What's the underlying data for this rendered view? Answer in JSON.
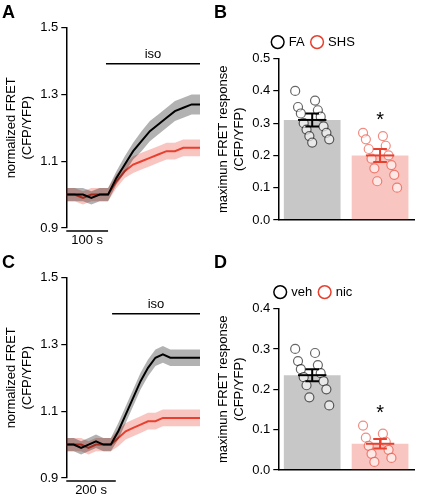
{
  "chart_data": [
    {
      "type": "line",
      "title": "A",
      "y_label": [
        "normalized FRET",
        "(CFP/YFP)"
      ],
      "x": [
        0,
        20,
        40,
        60,
        80,
        100,
        120,
        140,
        160,
        180,
        200,
        220,
        240,
        260,
        280,
        300,
        320
      ],
      "series": [
        {
          "color": "#000000",
          "values": [
            1.0,
            1.0,
            1.0,
            0.99,
            1.0,
            1.0,
            1.05,
            1.09,
            1.13,
            1.16,
            1.19,
            1.21,
            1.23,
            1.25,
            1.26,
            1.27,
            1.27
          ],
          "error": [
            0.02,
            0.02,
            0.02,
            0.02,
            0.02,
            0.02,
            0.02,
            0.025,
            0.025,
            0.03,
            0.03,
            0.03,
            0.03,
            0.03,
            0.03,
            0.03,
            0.03
          ]
        },
        {
          "color": "#e8402f",
          "values": [
            1.0,
            1.0,
            0.99,
            1.0,
            1.0,
            1.0,
            1.04,
            1.07,
            1.09,
            1.1,
            1.11,
            1.12,
            1.13,
            1.13,
            1.14,
            1.14,
            1.14
          ],
          "error": [
            0.02,
            0.02,
            0.02,
            0.02,
            0.02,
            0.02,
            0.02,
            0.02,
            0.025,
            0.025,
            0.025,
            0.025,
            0.025,
            0.025,
            0.025,
            0.025,
            0.025
          ]
        }
      ],
      "xlim": [
        0,
        320
      ],
      "ylim": [
        0.9,
        1.5
      ],
      "yticks": [
        0.9,
        1.1,
        1.3,
        1.5
      ],
      "tick_labels": "y",
      "annotations": [
        {
          "text": "iso",
          "x": [
            95,
            320
          ]
        }
      ],
      "scale_bar": {
        "value": 100,
        "label": "100 s"
      }
    },
    {
      "type": "bar",
      "title": "B",
      "y_label": [
        "maximun FRET response",
        "(CFP/YFP)"
      ],
      "categories": [
        null,
        null
      ],
      "series": [
        {
          "name": "FA",
          "color": "#000000",
          "values": [
            0.31,
            null
          ],
          "error": [
            0.02,
            null
          ],
          "points": [
            [
              0.4,
              0.37,
              0.35,
              0.34,
              0.33,
              0.32,
              0.3,
              0.29,
              0.28,
              0.27,
              0.26,
              0.25,
              0.24
            ],
            null
          ]
        },
        {
          "name": "SHS",
          "color": "#e8402f",
          "values": [
            null,
            0.2
          ],
          "error": [
            null,
            0.02
          ],
          "points": [
            null,
            [
              0.27,
              0.26,
              0.25,
              0.23,
              0.22,
              0.2,
              0.19,
              0.17,
              0.16,
              0.14,
              0.12,
              0.1
            ]
          ]
        }
      ],
      "ylim": [
        0,
        0.5
      ],
      "yticks": [
        {
          "value": 0,
          "label": "0.0"
        },
        0.1,
        0.2,
        0.3,
        0.4,
        0.5
      ],
      "legend": "top",
      "tick_labels": "y",
      "annotations": [
        {
          "text": "*",
          "at": "SHS"
        }
      ]
    },
    {
      "type": "line",
      "title": "C",
      "y_label": [
        "normalized FRET",
        "(CFP/YFP)"
      ],
      "x": [
        0,
        30,
        60,
        90,
        120,
        150,
        180,
        210,
        240,
        270,
        300,
        330,
        360,
        390,
        420,
        450,
        480,
        510,
        540
      ],
      "series": [
        {
          "color": "#000000",
          "values": [
            1.0,
            1.0,
            0.99,
            1.0,
            1.01,
            1.0,
            1.0,
            1.04,
            1.09,
            1.14,
            1.19,
            1.23,
            1.26,
            1.27,
            1.26,
            1.26,
            1.26,
            1.26,
            1.26
          ],
          "error": [
            0.02,
            0.02,
            0.02,
            0.02,
            0.02,
            0.02,
            0.02,
            0.025,
            0.025,
            0.025,
            0.025,
            0.025,
            0.025,
            0.025,
            0.025,
            0.025,
            0.025,
            0.025,
            0.025
          ]
        },
        {
          "color": "#e8402f",
          "values": [
            1.0,
            1.0,
            1.0,
            0.99,
            1.0,
            1.0,
            1.0,
            1.02,
            1.04,
            1.05,
            1.06,
            1.07,
            1.07,
            1.08,
            1.08,
            1.08,
            1.08,
            1.08,
            1.08
          ],
          "error": [
            0.02,
            0.02,
            0.02,
            0.02,
            0.02,
            0.02,
            0.02,
            0.025,
            0.025,
            0.025,
            0.025,
            0.025,
            0.025,
            0.025,
            0.025,
            0.025,
            0.025,
            0.025,
            0.025
          ]
        }
      ],
      "xlim": [
        0,
        540
      ],
      "ylim": [
        0.9,
        1.5
      ],
      "yticks": [
        0.9,
        1.1,
        1.3,
        1.5
      ],
      "tick_labels": "y",
      "annotations": [
        {
          "text": "iso",
          "x": [
            185,
            540
          ]
        }
      ],
      "scale_bar": {
        "value": 200,
        "label": "200 s"
      }
    },
    {
      "type": "bar",
      "title": "D",
      "y_label": [
        "maximun FRET response",
        "(CFP/YFP)"
      ],
      "categories": [
        null,
        null
      ],
      "series": [
        {
          "name": "veh",
          "color": "#000000",
          "values": [
            0.235,
            null
          ],
          "error": [
            0.015,
            null
          ],
          "points": [
            [
              0.3,
              0.29,
              0.27,
              0.26,
              0.25,
              0.24,
              0.23,
              0.22,
              0.21,
              0.2,
              0.18,
              0.16
            ],
            null
          ]
        },
        {
          "name": "nic",
          "color": "#e8402f",
          "values": [
            null,
            0.065
          ],
          "error": [
            null,
            0.012
          ],
          "points": [
            null,
            [
              0.11,
              0.09,
              0.08,
              0.07,
              0.06,
              0.05,
              0.04,
              0.03,
              0.02
            ]
          ]
        }
      ],
      "ylim": [
        0,
        0.4
      ],
      "yticks": [
        {
          "value": 0,
          "label": "0.0"
        },
        0.1,
        0.2,
        0.3,
        0.4
      ],
      "legend": "top",
      "tick_labels": "y",
      "annotations": [
        {
          "text": "*",
          "at": "nic"
        }
      ]
    }
  ]
}
